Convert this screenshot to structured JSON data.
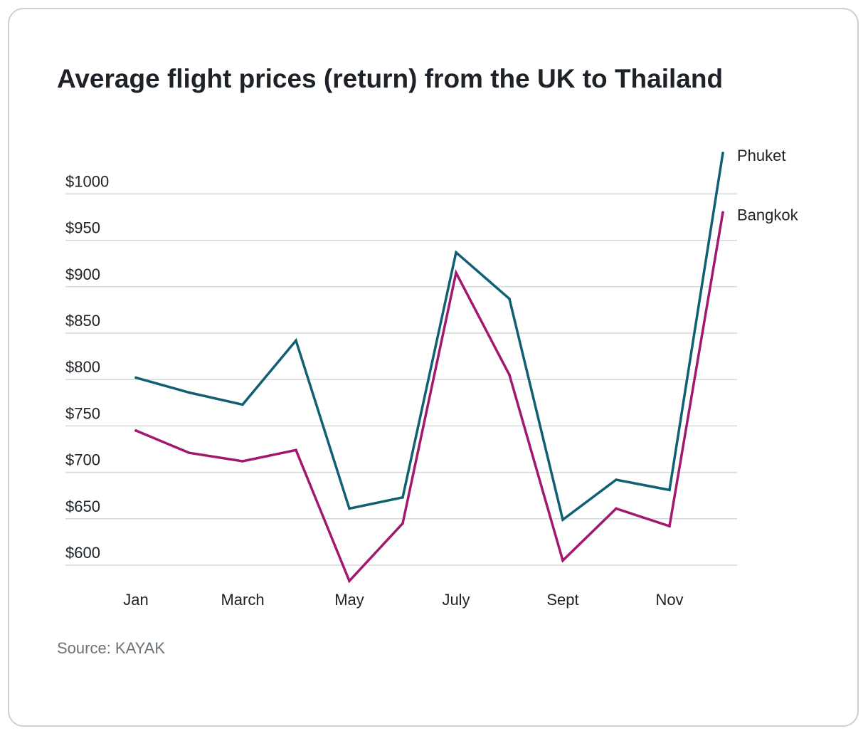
{
  "source": "Source: KAYAK",
  "colors": {
    "phuket": "#0f5f75",
    "bangkok": "#a2186f",
    "grid": "#d5d9dc",
    "text": "#1c2227",
    "muted": "#68737c"
  },
  "chart_data": {
    "type": "line",
    "title": "Average flight prices (return) from the UK to Thailand",
    "xlabel": "",
    "ylabel": "",
    "x": [
      "Jan",
      "Feb",
      "March",
      "April",
      "May",
      "June",
      "July",
      "Aug",
      "Sept",
      "Oct",
      "Nov",
      "Dec"
    ],
    "x_tick_labels": [
      "Jan",
      "",
      "March",
      "",
      "May",
      "",
      "July",
      "",
      "Sept",
      "",
      "Nov",
      ""
    ],
    "y_ticks": [
      600,
      650,
      700,
      750,
      800,
      850,
      900,
      950,
      1000
    ],
    "y_tick_labels": [
      "$600",
      "$650",
      "$700",
      "$750",
      "$800",
      "$850",
      "$900",
      "$950",
      "$1000"
    ],
    "ylim": [
      600,
      1000
    ],
    "grid": true,
    "legend": "end-of-line labels",
    "series": [
      {
        "name": "Phuket",
        "color": "#0f5f75",
        "values": [
          802,
          786,
          773,
          842,
          661,
          673,
          937,
          887,
          649,
          692,
          681,
          1044
        ]
      },
      {
        "name": "Bangkok",
        "color": "#a2186f",
        "values": [
          745,
          721,
          712,
          724,
          583,
          645,
          915,
          805,
          605,
          661,
          642,
          980
        ]
      }
    ]
  }
}
